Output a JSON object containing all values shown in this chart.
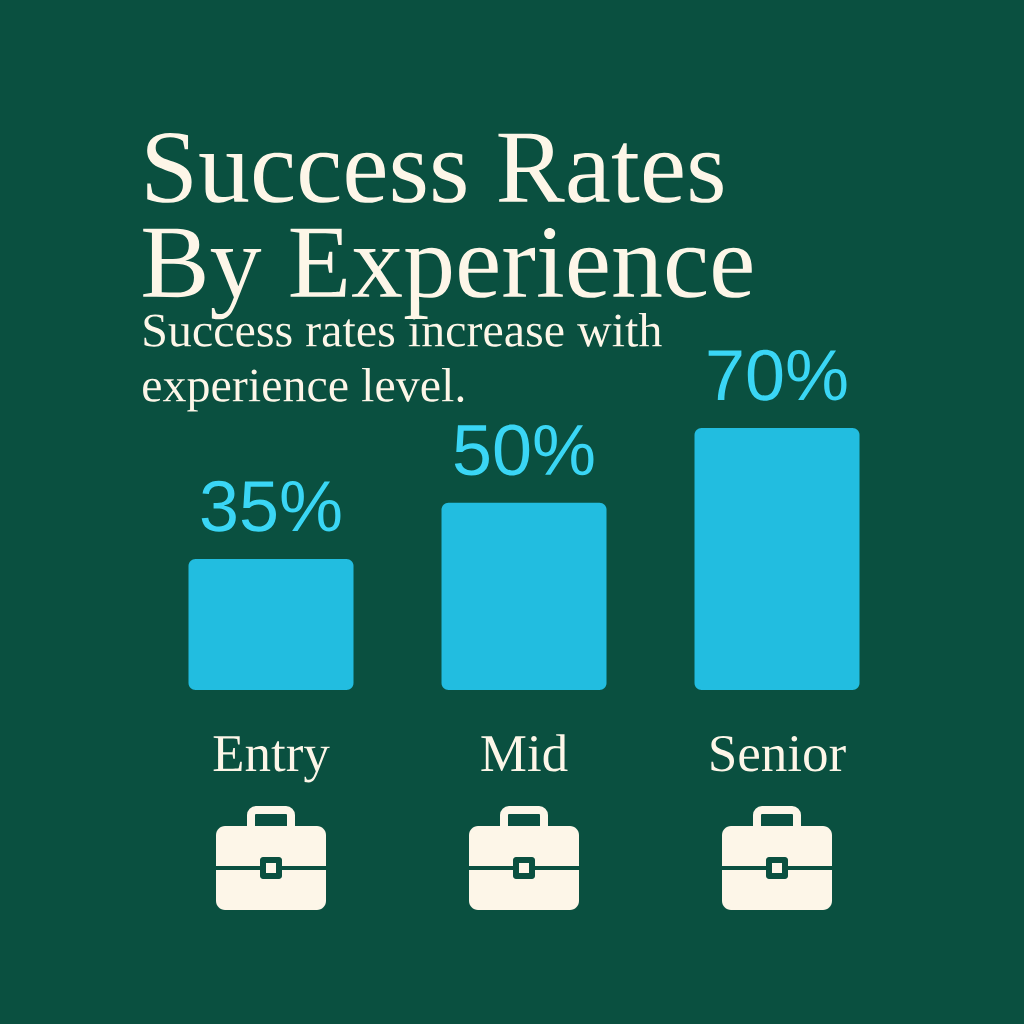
{
  "chart_data": {
    "type": "bar",
    "title": "Success Rates By Experience",
    "subtitle": "Success rates increase with experience level.",
    "categories": [
      "Entry",
      "Mid",
      "Senior"
    ],
    "values": [
      35,
      50,
      70
    ],
    "value_labels": [
      "35%",
      "50%",
      "70%"
    ],
    "color": "#22bde0"
  }
}
